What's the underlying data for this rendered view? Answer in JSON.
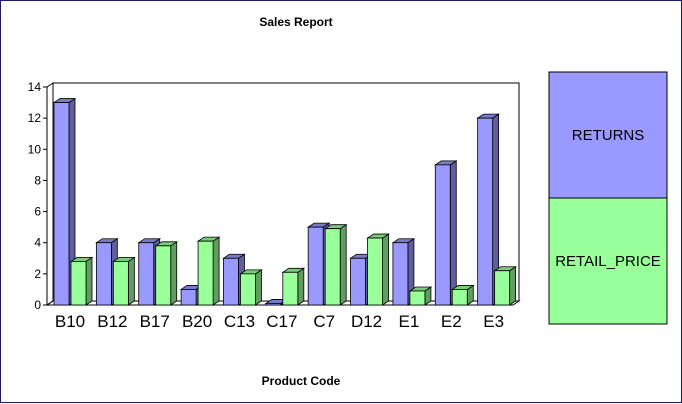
{
  "chart_data": {
    "type": "bar",
    "title": "Sales Report",
    "xlabel": "Product Code",
    "ylabel": "",
    "ylim": [
      0,
      14
    ],
    "yticks": [
      "0",
      "2",
      "4",
      "6",
      "8",
      "10",
      "12",
      "14"
    ],
    "categories": [
      "B10",
      "B12",
      "B17",
      "B20",
      "C13",
      "C17",
      "C7",
      "D12",
      "E1",
      "E2",
      "E3"
    ],
    "series": [
      {
        "name": "RETURNS",
        "color": "#9999ff",
        "values": [
          13,
          4,
          4,
          1,
          3,
          0.1,
          5,
          3,
          4,
          9,
          12
        ]
      },
      {
        "name": "RETAIL_PRICE",
        "color": "#99ff99",
        "values": [
          2.8,
          2.8,
          3.8,
          4.1,
          2.0,
          2.1,
          4.9,
          4.3,
          0.9,
          1.0,
          2.2
        ]
      }
    ],
    "legend_position": "right",
    "grid": false,
    "style": "3d-bar"
  }
}
